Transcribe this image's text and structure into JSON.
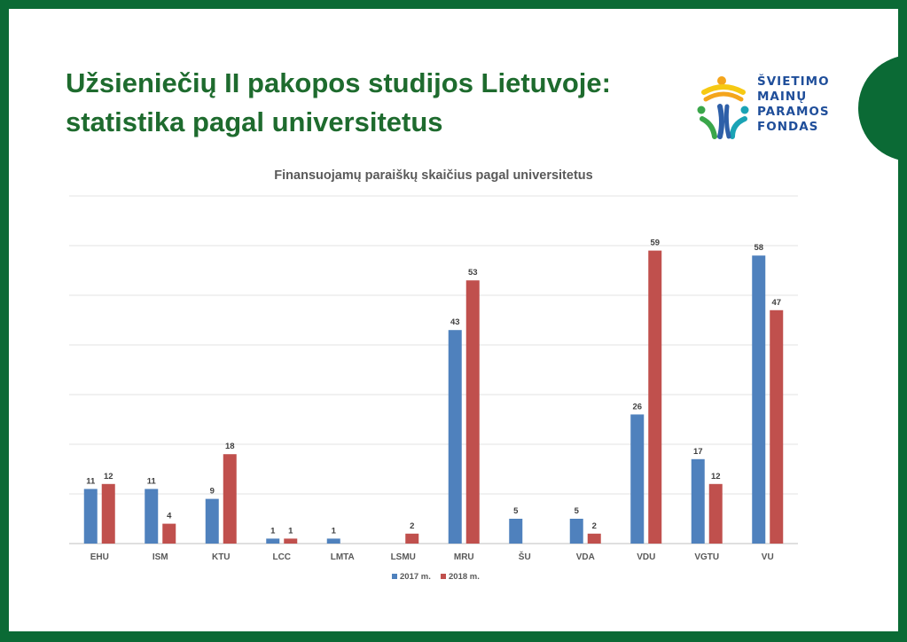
{
  "slide": {
    "title_line1": "Užsieniečių II pakopos studijos Lietuvoje:",
    "title_line2": "statistika pagal universitetus"
  },
  "logo": {
    "line1": "ŠVIETIMO",
    "line2": "MAINŲ",
    "line3": "PARAMOS",
    "line4": "FONDAS",
    "colors": {
      "text": "#1f4e9a",
      "orange": "#f4a51c",
      "yellow": "#f6c913",
      "green": "#3aa64a",
      "blue": "#2e5fa8",
      "teal": "#1aa3b5"
    }
  },
  "chart_data": {
    "type": "bar",
    "title": "Finansuojamų paraiškų skaičius pagal universitetus",
    "categories": [
      "EHU",
      "ISM",
      "KTU",
      "LCC",
      "LMTA",
      "LSMU",
      "MRU",
      "ŠU",
      "VDA",
      "VDU",
      "VGTU",
      "VU"
    ],
    "series": [
      {
        "name": "2017 m.",
        "color": "#4f81bd",
        "values": [
          11,
          11,
          9,
          1,
          1,
          null,
          43,
          5,
          5,
          26,
          17,
          58
        ]
      },
      {
        "name": "2018 m.",
        "color": "#c0504d",
        "values": [
          12,
          4,
          18,
          1,
          null,
          2,
          53,
          null,
          2,
          59,
          12,
          47
        ]
      }
    ],
    "ylim": [
      0,
      70
    ],
    "grid": true,
    "y_axis_labels": false,
    "legend_position": "bottom"
  }
}
